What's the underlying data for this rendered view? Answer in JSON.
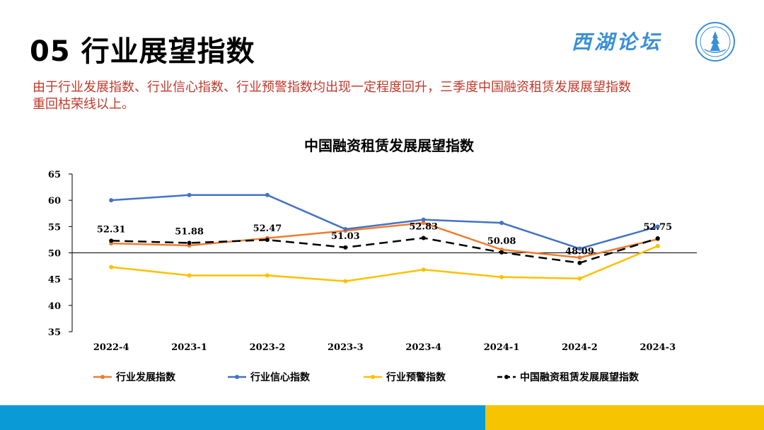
{
  "slide": {
    "title": "05 行业展望指数",
    "brand": "西湖论坛",
    "intro_line1": "由于行业发展指数、行业信心指数、行业预警指数均出现一定程度回升，三季度中国融资租赁发展展望指数",
    "intro_line2": "重回枯荣线以上。"
  },
  "colors": {
    "intro_text": "#c0392b",
    "footer_left": "#0a9ad6",
    "footer_right": "#f6c400"
  },
  "chart_data": {
    "type": "line",
    "title": "中国融资租赁发展展望指数",
    "categories": [
      "2022-4",
      "2023-1",
      "2023-2",
      "2023-3",
      "2023-4",
      "2024-1",
      "2024-2",
      "2024-3"
    ],
    "ylim": [
      35,
      65
    ],
    "yticks": [
      35,
      40,
      45,
      50,
      55,
      60,
      65
    ],
    "baseline": 50,
    "legend_position": "bottom",
    "series": [
      {
        "name": "行业发展指数",
        "color": "#ed7d31",
        "dash": false,
        "values": [
          51.8,
          51.4,
          52.8,
          54.2,
          55.7,
          50.6,
          49.1,
          52.6
        ]
      },
      {
        "name": "行业信心指数",
        "color": "#4472c4",
        "dash": false,
        "values": [
          60.0,
          61.0,
          61.0,
          54.5,
          56.3,
          55.7,
          50.8,
          55.0
        ]
      },
      {
        "name": "行业预警指数",
        "color": "#ffc000",
        "dash": false,
        "values": [
          47.3,
          45.7,
          45.7,
          44.6,
          46.8,
          45.4,
          45.1,
          51.3
        ]
      },
      {
        "name": "中国融资租赁发展展望指数",
        "color": "#000000",
        "dash": true,
        "values": [
          52.31,
          51.88,
          52.47,
          51.03,
          52.83,
          50.08,
          48.09,
          52.75
        ],
        "labels": [
          "52.31",
          "51.88",
          "52.47",
          "51.03",
          "52.83",
          "50.08",
          "48.09",
          "52.75"
        ]
      }
    ]
  }
}
